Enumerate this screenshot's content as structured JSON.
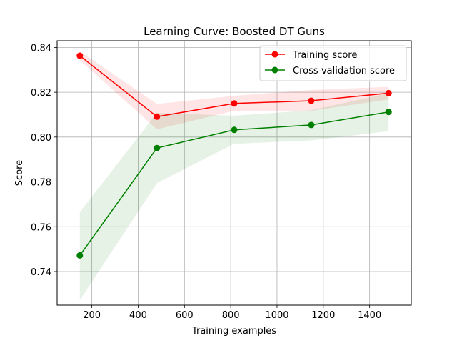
{
  "chart_data": {
    "type": "line",
    "title": "Learning Curve: Boosted DT Guns",
    "xlabel": "Training examples",
    "ylabel": "Score",
    "xlim": [
      50,
      1580
    ],
    "ylim": [
      0.725,
      0.843
    ],
    "xticks": [
      200,
      400,
      600,
      800,
      1000,
      1200,
      1400
    ],
    "xtick_labels": [
      "200",
      "400",
      "600",
      "800",
      "1000",
      "1200",
      "1400"
    ],
    "yticks": [
      0.74,
      0.76,
      0.78,
      0.8,
      0.82,
      0.84
    ],
    "ytick_labels": [
      "0.74",
      "0.76",
      "0.78",
      "0.80",
      "0.82",
      "0.84"
    ],
    "grid": true,
    "legend_position": "top-right",
    "x": [
      148,
      481,
      815,
      1148,
      1482
    ],
    "series": [
      {
        "name": "Training score",
        "color": "#ff0000",
        "band_color": "#ff0000",
        "values": [
          0.8363,
          0.8091,
          0.815,
          0.8162,
          0.8196
        ],
        "band_upper": [
          0.8383,
          0.8148,
          0.8184,
          0.821,
          0.8224
        ],
        "band_lower": [
          0.8343,
          0.8035,
          0.8117,
          0.8117,
          0.8168
        ]
      },
      {
        "name": "Cross-validation score",
        "color": "#008000",
        "band_color": "#008000",
        "values": [
          0.7472,
          0.7951,
          0.8032,
          0.8054,
          0.8112
        ],
        "band_upper": [
          0.7665,
          0.8108,
          0.8095,
          0.812,
          0.8195
        ],
        "band_lower": [
          0.7272,
          0.7795,
          0.797,
          0.7985,
          0.8026
        ]
      }
    ]
  }
}
